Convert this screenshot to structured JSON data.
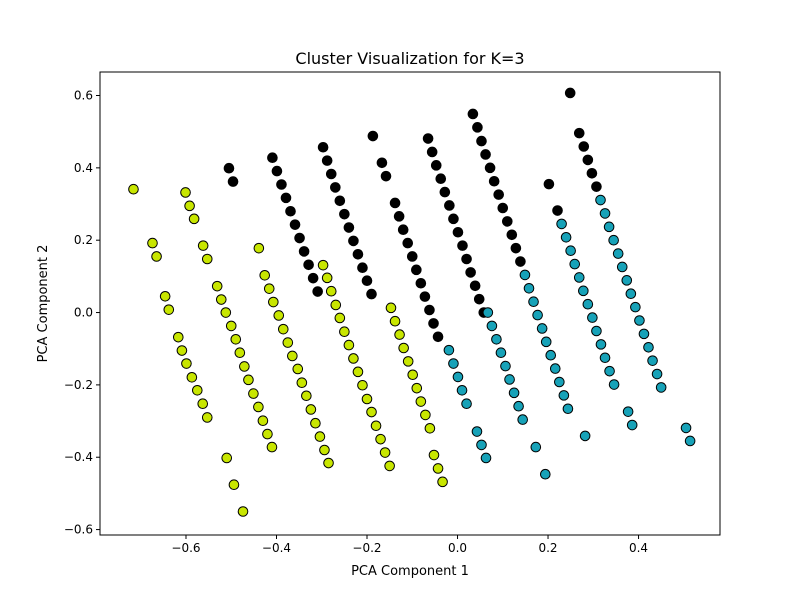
{
  "chart_data": {
    "type": "scatter",
    "title": "Cluster Visualization for K=3",
    "xlabel": "PCA Component 1",
    "ylabel": "PCA Component 2",
    "xlim": [
      -0.79,
      0.58
    ],
    "ylim": [
      -0.615,
      0.665
    ],
    "x_ticks": [
      -0.6,
      -0.4,
      -0.2,
      0.0,
      0.2,
      0.4
    ],
    "x_tick_labels": [
      "−0.6",
      "−0.4",
      "−0.2",
      "0.0",
      "0.2",
      "0.4"
    ],
    "y_ticks": [
      -0.6,
      -0.4,
      -0.2,
      0.0,
      0.2,
      0.4,
      0.6
    ],
    "y_tick_labels": [
      "−0.6",
      "−0.4",
      "−0.2",
      "0.0",
      "0.2",
      "0.4",
      "0.6"
    ],
    "grid": false,
    "legend": "none",
    "series": [
      {
        "color": "#c8e600",
        "marker_edge": "#000000",
        "points": [
          [
            -0.716,
            0.341
          ],
          [
            -0.674,
            0.192
          ],
          [
            -0.665,
            0.155
          ],
          [
            -0.646,
            0.045
          ],
          [
            -0.638,
            0.008
          ],
          [
            -0.617,
            -0.068
          ],
          [
            -0.609,
            -0.105
          ],
          [
            -0.599,
            -0.141
          ],
          [
            -0.587,
            -0.179
          ],
          [
            -0.575,
            -0.215
          ],
          [
            -0.563,
            -0.252
          ],
          [
            -0.553,
            -0.29
          ],
          [
            -0.601,
            0.332
          ],
          [
            -0.592,
            0.295
          ],
          [
            -0.582,
            0.259
          ],
          [
            -0.562,
            0.185
          ],
          [
            -0.553,
            0.148
          ],
          [
            -0.531,
            0.073
          ],
          [
            -0.522,
            0.036
          ],
          [
            -0.512,
            0.0
          ],
          [
            -0.5,
            -0.037
          ],
          [
            -0.49,
            -0.074
          ],
          [
            -0.481,
            -0.111
          ],
          [
            -0.471,
            -0.149
          ],
          [
            -0.462,
            -0.186
          ],
          [
            -0.451,
            -0.224
          ],
          [
            -0.44,
            -0.261
          ],
          [
            -0.43,
            -0.299
          ],
          [
            -0.42,
            -0.336
          ],
          [
            -0.41,
            -0.372
          ],
          [
            -0.439,
            0.178
          ],
          [
            -0.426,
            0.103
          ],
          [
            -0.416,
            0.066
          ],
          [
            -0.407,
            0.029
          ],
          [
            -0.395,
            -0.008
          ],
          [
            -0.385,
            -0.046
          ],
          [
            -0.375,
            -0.083
          ],
          [
            -0.365,
            -0.12
          ],
          [
            -0.353,
            -0.156
          ],
          [
            -0.344,
            -0.194
          ],
          [
            -0.334,
            -0.23
          ],
          [
            -0.324,
            -0.268
          ],
          [
            -0.314,
            -0.306
          ],
          [
            -0.304,
            -0.343
          ],
          [
            -0.294,
            -0.38
          ],
          [
            -0.285,
            -0.416
          ],
          [
            -0.297,
            0.131
          ],
          [
            -0.288,
            0.096
          ],
          [
            -0.279,
            0.059
          ],
          [
            -0.269,
            0.021
          ],
          [
            -0.26,
            -0.015
          ],
          [
            -0.25,
            -0.053
          ],
          [
            -0.24,
            -0.09
          ],
          [
            -0.23,
            -0.127
          ],
          [
            -0.22,
            -0.164
          ],
          [
            -0.21,
            -0.201
          ],
          [
            -0.2,
            -0.239
          ],
          [
            -0.19,
            -0.275
          ],
          [
            -0.18,
            -0.313
          ],
          [
            -0.17,
            -0.35
          ],
          [
            -0.16,
            -0.387
          ],
          [
            -0.15,
            -0.424
          ],
          [
            -0.147,
            0.013
          ],
          [
            -0.138,
            -0.024
          ],
          [
            -0.128,
            -0.061
          ],
          [
            -0.119,
            -0.098
          ],
          [
            -0.109,
            -0.135
          ],
          [
            -0.099,
            -0.172
          ],
          [
            -0.09,
            -0.209
          ],
          [
            -0.081,
            -0.246
          ],
          [
            -0.071,
            -0.283
          ],
          [
            -0.061,
            -0.32
          ],
          [
            -0.052,
            -0.394
          ],
          [
            -0.043,
            -0.431
          ],
          [
            -0.033,
            -0.468
          ],
          [
            -0.51,
            -0.402
          ],
          [
            -0.494,
            -0.476
          ],
          [
            -0.474,
            -0.55
          ]
        ]
      },
      {
        "color": "#000000",
        "marker_edge": "#000000",
        "points": [
          [
            -0.505,
            0.399
          ],
          [
            -0.496,
            0.362
          ],
          [
            -0.409,
            0.428
          ],
          [
            -0.399,
            0.391
          ],
          [
            -0.389,
            0.354
          ],
          [
            -0.379,
            0.317
          ],
          [
            -0.369,
            0.28
          ],
          [
            -0.359,
            0.243
          ],
          [
            -0.349,
            0.206
          ],
          [
            -0.339,
            0.169
          ],
          [
            -0.329,
            0.132
          ],
          [
            -0.319,
            0.095
          ],
          [
            -0.309,
            0.058
          ],
          [
            -0.297,
            0.457
          ],
          [
            -0.288,
            0.42
          ],
          [
            -0.279,
            0.383
          ],
          [
            -0.27,
            0.346
          ],
          [
            -0.26,
            0.309
          ],
          [
            -0.25,
            0.272
          ],
          [
            -0.24,
            0.235
          ],
          [
            -0.23,
            0.198
          ],
          [
            -0.22,
            0.161
          ],
          [
            -0.21,
            0.124
          ],
          [
            -0.2,
            0.088
          ],
          [
            -0.19,
            0.051
          ],
          [
            -0.187,
            0.488
          ],
          [
            -0.167,
            0.414
          ],
          [
            -0.158,
            0.377
          ],
          [
            -0.138,
            0.303
          ],
          [
            -0.129,
            0.266
          ],
          [
            -0.12,
            0.229
          ],
          [
            -0.11,
            0.192
          ],
          [
            -0.1,
            0.155
          ],
          [
            -0.091,
            0.118
          ],
          [
            -0.081,
            0.081
          ],
          [
            -0.072,
            0.044
          ],
          [
            -0.062,
            0.007
          ],
          [
            -0.053,
            -0.03
          ],
          [
            -0.043,
            -0.067
          ],
          [
            -0.065,
            0.481
          ],
          [
            -0.056,
            0.444
          ],
          [
            -0.047,
            0.407
          ],
          [
            -0.037,
            0.37
          ],
          [
            -0.028,
            0.333
          ],
          [
            -0.018,
            0.296
          ],
          [
            -0.009,
            0.259
          ],
          [
            0.001,
            0.222
          ],
          [
            0.011,
            0.185
          ],
          [
            0.02,
            0.148
          ],
          [
            0.029,
            0.111
          ],
          [
            0.039,
            0.074
          ],
          [
            0.048,
            0.037
          ],
          [
            0.058,
            0.0
          ],
          [
            0.034,
            0.549
          ],
          [
            0.044,
            0.512
          ],
          [
            0.053,
            0.474
          ],
          [
            0.062,
            0.437
          ],
          [
            0.072,
            0.4
          ],
          [
            0.081,
            0.363
          ],
          [
            0.091,
            0.326
          ],
          [
            0.1,
            0.289
          ],
          [
            0.11,
            0.252
          ],
          [
            0.12,
            0.215
          ],
          [
            0.129,
            0.178
          ],
          [
            0.139,
            0.141
          ],
          [
            0.202,
            0.355
          ],
          [
            0.221,
            0.282
          ],
          [
            0.249,
            0.607
          ],
          [
            0.269,
            0.496
          ],
          [
            0.279,
            0.459
          ],
          [
            0.288,
            0.422
          ],
          [
            0.297,
            0.385
          ],
          [
            0.307,
            0.348
          ]
        ]
      },
      {
        "color": "#17a2b8",
        "marker_edge": "#000000",
        "points": [
          [
            -0.019,
            -0.104
          ],
          [
            -0.009,
            -0.141
          ],
          [
            0.001,
            -0.178
          ],
          [
            0.01,
            -0.215
          ],
          [
            0.02,
            -0.252
          ],
          [
            0.043,
            -0.329
          ],
          [
            0.053,
            -0.366
          ],
          [
            0.063,
            -0.402
          ],
          [
            0.067,
            0.0
          ],
          [
            0.076,
            -0.037
          ],
          [
            0.086,
            -0.074
          ],
          [
            0.096,
            -0.111
          ],
          [
            0.106,
            -0.148
          ],
          [
            0.115,
            -0.185
          ],
          [
            0.125,
            -0.222
          ],
          [
            0.135,
            -0.259
          ],
          [
            0.144,
            -0.296
          ],
          [
            0.149,
            0.104
          ],
          [
            0.158,
            0.067
          ],
          [
            0.168,
            0.03
          ],
          [
            0.177,
            -0.007
          ],
          [
            0.187,
            -0.044
          ],
          [
            0.196,
            -0.081
          ],
          [
            0.206,
            -0.118
          ],
          [
            0.216,
            -0.155
          ],
          [
            0.225,
            -0.192
          ],
          [
            0.235,
            -0.229
          ],
          [
            0.244,
            -0.266
          ],
          [
            0.173,
            -0.372
          ],
          [
            0.194,
            -0.447
          ],
          [
            0.23,
            0.245
          ],
          [
            0.24,
            0.208
          ],
          [
            0.25,
            0.171
          ],
          [
            0.259,
            0.134
          ],
          [
            0.269,
            0.097
          ],
          [
            0.278,
            0.06
          ],
          [
            0.288,
            0.023
          ],
          [
            0.298,
            -0.014
          ],
          [
            0.307,
            -0.051
          ],
          [
            0.317,
            -0.088
          ],
          [
            0.326,
            -0.125
          ],
          [
            0.336,
            -0.162
          ],
          [
            0.346,
            -0.199
          ],
          [
            0.282,
            -0.341
          ],
          [
            0.316,
            0.311
          ],
          [
            0.326,
            0.274
          ],
          [
            0.335,
            0.237
          ],
          [
            0.345,
            0.2
          ],
          [
            0.355,
            0.163
          ],
          [
            0.364,
            0.126
          ],
          [
            0.374,
            0.089
          ],
          [
            0.383,
            0.052
          ],
          [
            0.393,
            0.015
          ],
          [
            0.402,
            -0.022
          ],
          [
            0.412,
            -0.059
          ],
          [
            0.422,
            -0.096
          ],
          [
            0.431,
            -0.133
          ],
          [
            0.441,
            -0.17
          ],
          [
            0.45,
            -0.207
          ],
          [
            0.377,
            -0.274
          ],
          [
            0.386,
            -0.311
          ],
          [
            0.505,
            -0.319
          ],
          [
            0.514,
            -0.355
          ]
        ]
      }
    ]
  }
}
